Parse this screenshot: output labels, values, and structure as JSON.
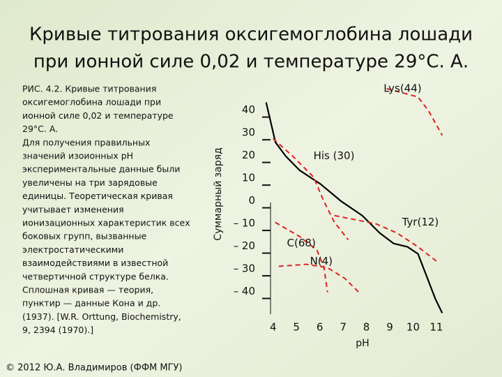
{
  "title": [
    "Кривые титрования оксигемоглобина лошади",
    "при ионной силе 0,02 и температуре 29°С. А."
  ],
  "caption": [
    "РИС. 4.2. Кривые титрования",
    "оксигемоглобина лошади при",
    "ионной силе 0,02 и температуре",
    "29°С. А.",
    "Для получения правильных",
    "значений изоионных рН",
    "экспериментальные данные были",
    "увеличены на три зарядовые",
    "единицы. Теоретическая кривая",
    "учитывает изменения",
    "ионизационных характеристик всех",
    "боковых групп, вызванные",
    "электростатическими",
    "взаимодействиями в известной",
    "четвертичной структуре белка.",
    "Сплошная кривая — теория,",
    "пунктир — данные Кона и др.",
    "(1937). [W.R. Orttung, Biochemistry,",
    "9, 2394 (1970).]"
  ],
  "footer": "© 2012 Ю.А. Владимиров (ФФМ МГУ)",
  "chart_data": {
    "type": "line",
    "x_label": "pH",
    "y_label": "Суммарный заряд",
    "xlim": [
      3.5,
      11.6
    ],
    "ylim": [
      -50,
      55
    ],
    "xticks": [
      4,
      5,
      6,
      7,
      8,
      9,
      10,
      11
    ],
    "yticks": [
      40,
      30,
      20,
      10,
      0,
      {
        "value": -10,
        "label": "– 10"
      },
      {
        "value": -20,
        "label": "– 20"
      },
      {
        "value": -30,
        "label": "– 30"
      },
      {
        "value": -40,
        "label": "– 40"
      }
    ],
    "series": [
      {
        "color": "#000000",
        "style": "solid",
        "x": [
          3.7,
          4.1,
          4.54,
          5.13,
          6.03,
          6.93,
          7.82,
          8.57,
          9.16,
          9.76,
          10.21,
          10.5,
          10.96,
          11.25
        ],
        "values": [
          43.4,
          25.8,
          19.7,
          13.5,
          7.4,
          -0.3,
          -6.5,
          -14.2,
          -18.8,
          -20.3,
          -23.4,
          -31.1,
          -43.4,
          -49.5
        ]
      },
      {
        "name": "Lys(44)",
        "color": "#e02020",
        "style": "dashed",
        "x": [
          8.87,
          10.21,
          10.66,
          11.25
        ],
        "values": [
          49.5,
          45.8,
          39.7,
          28.9
        ]
      },
      {
        "name": "His (30)",
        "color": "#e02020",
        "style": "dashed",
        "x": [
          4.0,
          4.84,
          5.73,
          6.18,
          6.63,
          7.22
        ],
        "values": [
          27.4,
          19.7,
          10.5,
          -0.3,
          -9.5,
          -17.2
        ]
      },
      {
        "name": "Tyr(12)",
        "color": "#e02020",
        "style": "dashed",
        "x": [
          6.63,
          8.42,
          9.31,
          10.21,
          11.1
        ],
        "values": [
          -6.5,
          -10.2,
          -14.2,
          -20.3,
          -27.4
        ]
      },
      {
        "name": "C(68)",
        "color": "#e02020",
        "style": "dashed",
        "x": [
          4.09,
          5.13,
          5.88,
          6.18,
          6.33
        ],
        "values": [
          -9.5,
          -15.7,
          -21.8,
          -29.5,
          -40.3
        ]
      },
      {
        "name": "N(4)",
        "color": "#e02020",
        "style": "dashed",
        "x": [
          4.24,
          5.43,
          6.33,
          7.07,
          7.67
        ],
        "values": [
          -28.9,
          -28.0,
          -29.5,
          -34.2,
          -40.3
        ]
      }
    ]
  }
}
